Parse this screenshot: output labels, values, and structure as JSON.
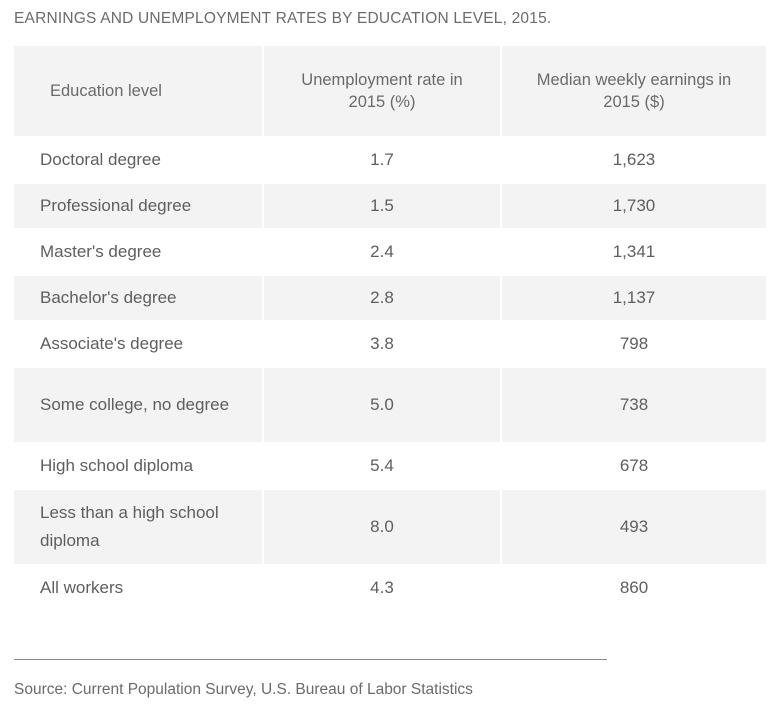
{
  "title": "EARNINGS AND UNEMPLOYMENT RATES BY EDUCATION LEVEL, 2015.",
  "headers": [
    "Education level",
    "Unemployment rate in 2015 (%)",
    "Median weekly earnings in 2015 ($)"
  ],
  "rows": [
    {
      "level": "Doctoral degree",
      "rate": "1.7",
      "earnings": "1,623"
    },
    {
      "level": "Professional degree",
      "rate": "1.5",
      "earnings": "1,730"
    },
    {
      "level": "Master's degree",
      "rate": "2.4",
      "earnings": "1,341"
    },
    {
      "level": "Bachelor's degree",
      "rate": "2.8",
      "earnings": "1,137"
    },
    {
      "level": "Associate's degree",
      "rate": "3.8",
      "earnings": "798"
    },
    {
      "level": "Some college, no degree",
      "rate": "5.0",
      "earnings": "738"
    },
    {
      "level": "High school diploma",
      "rate": "5.4",
      "earnings": "678"
    },
    {
      "level": "Less than a high school diploma",
      "rate": "8.0",
      "earnings": "493"
    },
    {
      "level": "All workers",
      "rate": "4.3",
      "earnings": "860"
    }
  ],
  "source": "Source: Current Population Survey, U.S. Bureau of Labor Statistics",
  "chart_data": {
    "type": "table",
    "title": "EARNINGS AND UNEMPLOYMENT RATES BY EDUCATION LEVEL, 2015.",
    "columns": [
      "Education level",
      "Unemployment rate in 2015 (%)",
      "Median weekly earnings in 2015 ($)"
    ],
    "categories": [
      "Doctoral degree",
      "Professional degree",
      "Master's degree",
      "Bachelor's degree",
      "Associate's degree",
      "Some college, no degree",
      "High school diploma",
      "Less than a high school diploma",
      "All workers"
    ],
    "series": [
      {
        "name": "Unemployment rate in 2015 (%)",
        "values": [
          1.7,
          1.5,
          2.4,
          2.8,
          3.8,
          5.0,
          5.4,
          8.0,
          4.3
        ]
      },
      {
        "name": "Median weekly earnings in 2015 ($)",
        "values": [
          1623,
          1730,
          1341,
          1137,
          798,
          738,
          678,
          493,
          860
        ]
      }
    ]
  }
}
